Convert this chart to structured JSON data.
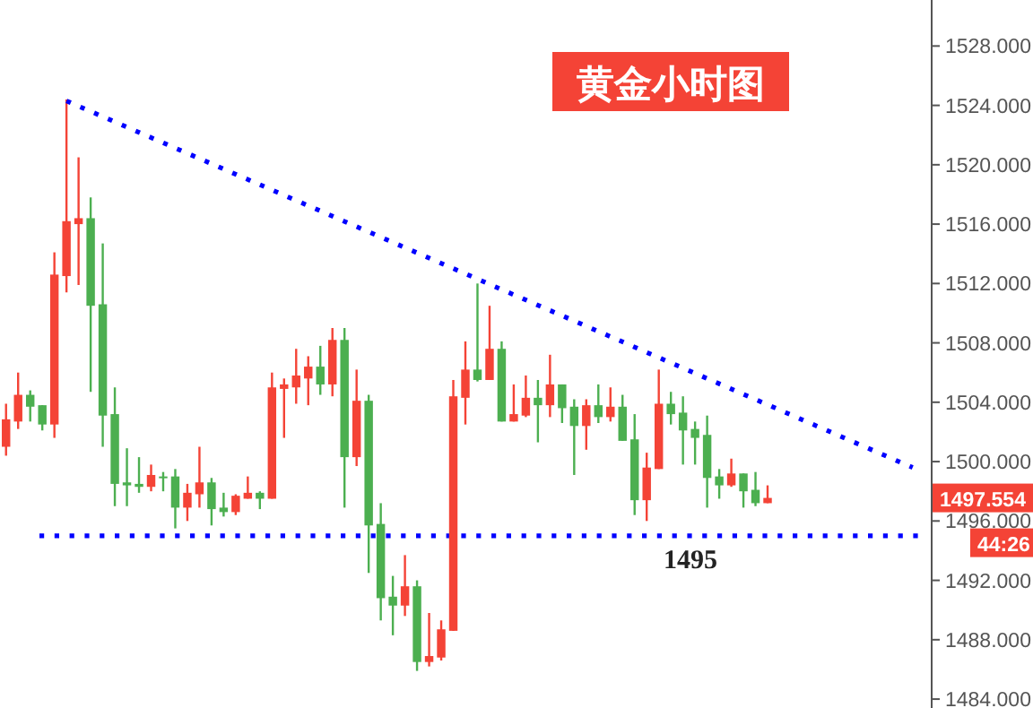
{
  "chart_data": {
    "type": "candlestick",
    "title": "黄金小时图",
    "categories": [
      null,
      null,
      null,
      null,
      null,
      null,
      null,
      null,
      null,
      null,
      null,
      null,
      null,
      null,
      null,
      null,
      null,
      null,
      null,
      null,
      null,
      null,
      null,
      null,
      null,
      null,
      null,
      null,
      null,
      null,
      null,
      null,
      null,
      null,
      null,
      null,
      null,
      null,
      null,
      null,
      null,
      null,
      null,
      null,
      null,
      null,
      null,
      null,
      null,
      null,
      null,
      null,
      null,
      null,
      null,
      null,
      null,
      null,
      null,
      null,
      null,
      null,
      null,
      null,
      null,
      null,
      null,
      null,
      null,
      null,
      null,
      null,
      null,
      null,
      null,
      null,
      null
    ],
    "ohlc": [
      [
        1501.0,
        1503.9,
        1500.4,
        1502.85
      ],
      [
        1502.7,
        1506.0,
        1502.2,
        1504.5
      ],
      [
        1504.5,
        1504.8,
        1502.7,
        1503.7
      ],
      [
        1503.8,
        1503.8,
        1502.1,
        1502.5
      ],
      [
        1502.5,
        1514.1,
        1501.6,
        1512.6
      ],
      [
        1512.5,
        1524.4,
        1511.4,
        1516.2
      ],
      [
        1516.0,
        1520.5,
        1511.9,
        1516.4
      ],
      [
        1516.4,
        1517.8,
        1504.7,
        1510.5
      ],
      [
        1510.6,
        1514.7,
        1501.0,
        1503.1
      ],
      [
        1503.2,
        1505.0,
        1497.0,
        1498.5
      ],
      [
        1498.6,
        1500.9,
        1497.0,
        1498.4
      ],
      [
        1498.5,
        1500.3,
        1497.9,
        1498.3
      ],
      [
        1498.3,
        1499.8,
        1498.0,
        1499.1
      ],
      [
        1499.0,
        1499.3,
        1498.0,
        1498.9
      ],
      [
        1499.0,
        1499.5,
        1495.5,
        1496.9
      ],
      [
        1496.9,
        1498.5,
        1496.0,
        1497.9
      ],
      [
        1497.8,
        1501.0,
        1496.9,
        1498.6
      ],
      [
        1498.6,
        1498.9,
        1495.7,
        1496.8
      ],
      [
        1496.9,
        1497.9,
        1496.3,
        1496.6
      ],
      [
        1496.6,
        1497.8,
        1496.4,
        1497.7
      ],
      [
        1497.5,
        1499.0,
        1497.5,
        1497.9
      ],
      [
        1497.9,
        1498.0,
        1496.8,
        1497.5
      ],
      [
        1497.5,
        1506.0,
        1497.5,
        1505.0
      ],
      [
        1504.9,
        1505.6,
        1501.6,
        1505.2
      ],
      [
        1505.0,
        1507.6,
        1503.9,
        1505.8
      ],
      [
        1505.6,
        1507.1,
        1503.8,
        1506.4
      ],
      [
        1506.4,
        1507.8,
        1504.5,
        1505.2
      ],
      [
        1505.2,
        1509.0,
        1504.4,
        1508.2
      ],
      [
        1508.2,
        1509.0,
        1496.9,
        1500.3
      ],
      [
        1500.3,
        1506.2,
        1499.7,
        1504.1
      ],
      [
        1504.1,
        1504.5,
        1492.5,
        1495.7
      ],
      [
        1495.8,
        1497.2,
        1489.3,
        1490.8
      ],
      [
        1490.9,
        1492.3,
        1488.3,
        1490.3
      ],
      [
        1490.3,
        1493.7,
        1489.6,
        1491.6
      ],
      [
        1491.6,
        1492.0,
        1485.9,
        1486.5
      ],
      [
        1486.5,
        1489.8,
        1486.2,
        1486.9
      ],
      [
        1486.8,
        1489.3,
        1486.6,
        1488.7
      ],
      [
        1488.6,
        1505.5,
        1488.6,
        1504.4
      ],
      [
        1504.3,
        1508.1,
        1502.5,
        1506.2
      ],
      [
        1506.2,
        1512.0,
        1505.4,
        1505.5
      ],
      [
        1505.5,
        1510.5,
        1505.5,
        1507.6
      ],
      [
        1507.6,
        1508.1,
        1502.7,
        1502.7
      ],
      [
        1502.7,
        1505.2,
        1502.7,
        1503.2
      ],
      [
        1503.1,
        1505.8,
        1503.0,
        1504.3
      ],
      [
        1504.3,
        1505.5,
        1501.3,
        1503.8
      ],
      [
        1503.8,
        1507.2,
        1503.0,
        1505.2
      ],
      [
        1505.2,
        1505.2,
        1502.6,
        1503.6
      ],
      [
        1503.7,
        1504.2,
        1499.1,
        1502.4
      ],
      [
        1502.4,
        1504.2,
        1500.8,
        1503.8
      ],
      [
        1503.8,
        1505.2,
        1502.6,
        1503.0
      ],
      [
        1503.0,
        1505.0,
        1502.7,
        1503.7
      ],
      [
        1503.7,
        1504.5,
        1501.4,
        1501.4
      ],
      [
        1501.5,
        1503.2,
        1496.4,
        1497.4
      ],
      [
        1497.4,
        1500.6,
        1496.0,
        1499.6
      ],
      [
        1499.5,
        1506.2,
        1499.5,
        1503.9
      ],
      [
        1503.9,
        1504.7,
        1502.5,
        1503.2
      ],
      [
        1503.3,
        1504.4,
        1499.8,
        1502.1
      ],
      [
        1502.2,
        1502.7,
        1499.8,
        1501.6
      ],
      [
        1501.8,
        1503.1,
        1496.9,
        1498.9
      ],
      [
        1499.0,
        1499.5,
        1497.5,
        1498.4
      ],
      [
        1498.4,
        1500.2,
        1498.3,
        1499.2
      ],
      [
        1499.2,
        1499.2,
        1496.9,
        1498.0
      ],
      [
        1498.1,
        1499.3,
        1497.0,
        1497.2
      ],
      [
        1497.2,
        1498.4,
        1497.2,
        1497.554
      ],
      null,
      null,
      null,
      null,
      null,
      null,
      null,
      null,
      null,
      null,
      null,
      null,
      null
    ],
    "colors": [
      "#f44336",
      "#f44336",
      "#4caf50",
      "#4caf50",
      "#f44336",
      "#f44336",
      "#f44336",
      "#4caf50",
      "#4caf50",
      "#4caf50",
      "#4caf50",
      "#4caf50",
      "#f44336",
      "#4caf50",
      "#4caf50",
      "#f44336",
      "#f44336",
      "#4caf50",
      "#4caf50",
      "#f44336",
      "#f44336",
      "#4caf50",
      "#f44336",
      "#f44336",
      "#f44336",
      "#f44336",
      "#4caf50",
      "#f44336",
      "#4caf50",
      "#f44336",
      "#4caf50",
      "#4caf50",
      "#4caf50",
      "#f44336",
      "#4caf50",
      "#f44336",
      "#f44336",
      "#f44336",
      "#f44336",
      "#4caf50",
      "#f44336",
      "#4caf50",
      "#f44336",
      "#f44336",
      "#4caf50",
      "#f44336",
      "#4caf50",
      "#4caf50",
      "#f44336",
      "#4caf50",
      "#f44336",
      "#4caf50",
      "#4caf50",
      "#f44336",
      "#f44336",
      "#4caf50",
      "#4caf50",
      "#4caf50",
      "#4caf50",
      "#4caf50",
      "#f44336",
      "#4caf50",
      "#4caf50",
      "#f44336",
      null,
      null,
      null,
      null,
      null,
      null,
      null,
      null,
      null,
      null,
      null,
      null,
      null
    ],
    "ylim": [
      1483.4,
      1531.1
    ],
    "yticks": [
      {
        "value": 1484,
        "label": "1484.000"
      },
      {
        "value": 1488,
        "label": "1488.000"
      },
      {
        "value": 1492,
        "label": "1492.000"
      },
      {
        "value": 1496,
        "label": "1496.000"
      },
      {
        "value": 1500,
        "label": "1500.000"
      },
      {
        "value": 1504,
        "label": "1504.000"
      },
      {
        "value": 1508,
        "label": "1508.000"
      },
      {
        "value": 1512,
        "label": "1512.000"
      },
      {
        "value": 1516,
        "label": "1516.000"
      },
      {
        "value": 1520,
        "label": "1520.000"
      },
      {
        "value": 1524,
        "label": "1524.000"
      },
      {
        "value": 1528,
        "label": "1528.000"
      }
    ],
    "tick_labels": "y",
    "series": [
      {
        "type": "line",
        "values": [
          null,
          null,
          null,
          null,
          null,
          1524.3,
          null,
          null,
          null,
          null,
          null,
          null,
          null,
          null,
          null,
          null,
          null,
          null,
          null,
          null,
          null,
          null,
          null,
          null,
          null,
          null,
          null,
          null,
          null,
          null,
          null,
          null,
          null,
          null,
          null,
          null,
          null,
          null,
          null,
          null,
          null,
          null,
          null,
          null,
          null,
          null,
          null,
          null,
          null,
          null,
          null,
          null,
          null,
          null,
          null,
          null,
          null,
          null,
          null,
          null,
          null,
          null,
          null,
          null,
          null,
          null,
          null,
          null,
          null,
          null,
          null,
          null,
          null,
          null,
          null,
          1499.6,
          null
        ],
        "color": "#0000ff",
        "line_style": "dotted"
      }
    ],
    "ref_lines": [
      {
        "axis": "y",
        "value": 1495,
        "label": "1495",
        "color": "#0000ff",
        "line_style": "dotted"
      }
    ],
    "annotations": [
      "1497.554",
      "44:26"
    ]
  }
}
